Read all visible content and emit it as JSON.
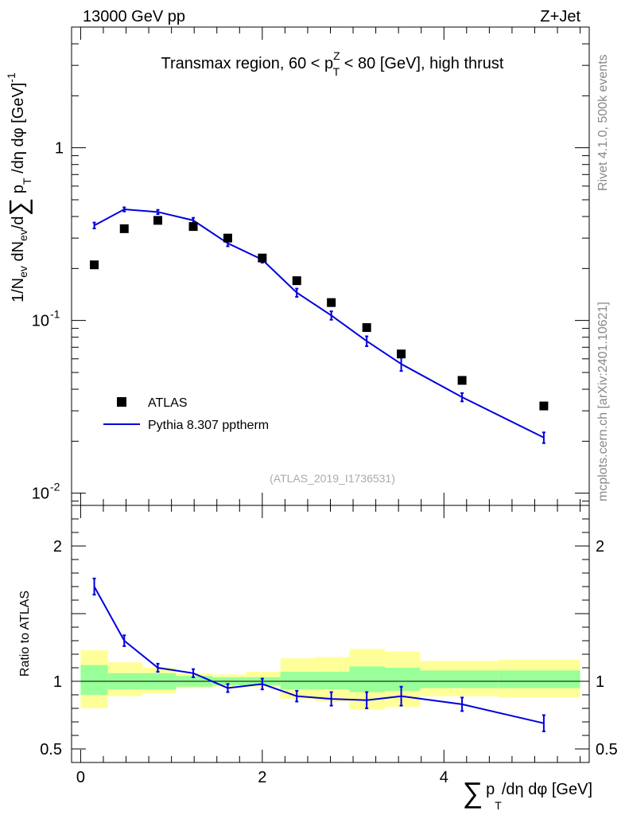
{
  "header": {
    "left": "13000 GeV pp",
    "right": "Z+Jet",
    "side_top": "Rivet 4.1.0,  500k events",
    "side_bottom": "mcplots.cern.ch [arXiv:2401.10621]",
    "watermark": "(ATLAS_2019_I1736531)"
  },
  "colors": {
    "data": "#000000",
    "mc": "#0000dd",
    "band_inner": "#99ff99",
    "band_outer": "#ffff99"
  },
  "chart_data": [
    {
      "type": "scatter",
      "title": "Transmax region, 60 < p_T^Z < 80 [GeV], high thrust",
      "title_parts": {
        "pre": "Transmax region, 60 < p",
        "sup": "Z",
        "sub": "T",
        "post": " < 80 [GeV], high thrust"
      },
      "ylabel": "1/N_ev dN_ev/d∑ p_T /dη dφ [GeV]^-1",
      "ylabel_parts": {
        "a": "1/N",
        "b": "ev",
        "c": " dN",
        "d": "ev",
        "e": "/d",
        "sum": "∑",
        "f": " p",
        "g": "T",
        "h": " /dη dφ  [GeV]",
        "i": "-1"
      },
      "yscale": "log",
      "ylim": [
        0.0085,
        5.0
      ],
      "xlim": [
        -0.1,
        5.6
      ],
      "yticks": [
        {
          "value": 1,
          "label": "1"
        },
        {
          "value": 0.1,
          "base": "10",
          "exp": "-1"
        },
        {
          "value": 0.01,
          "base": "10",
          "exp": "-2"
        }
      ],
      "legend": {
        "position": "bottom-left",
        "entries": [
          {
            "label": "ATLAS",
            "style": "marker"
          },
          {
            "label": "Pythia 8.307 pptherm",
            "style": "line"
          }
        ]
      },
      "series": [
        {
          "name": "ATLAS",
          "x": [
            0.15,
            0.48,
            0.85,
            1.24,
            1.62,
            2.0,
            2.38,
            2.76,
            3.15,
            3.53,
            4.2,
            5.1
          ],
          "y": [
            0.21,
            0.34,
            0.38,
            0.35,
            0.3,
            0.23,
            0.17,
            0.127,
            0.091,
            0.064,
            0.045,
            0.032
          ]
        },
        {
          "name": "Pythia 8.307 pptherm",
          "x": [
            0.15,
            0.48,
            0.85,
            1.24,
            1.62,
            2.0,
            2.38,
            2.76,
            3.15,
            3.53,
            4.2,
            5.1
          ],
          "y": [
            0.355,
            0.44,
            0.425,
            0.38,
            0.28,
            0.225,
            0.145,
            0.107,
            0.076,
            0.056,
            0.036,
            0.021
          ],
          "yerr": [
            0.014,
            0.012,
            0.012,
            0.013,
            0.011,
            0.009,
            0.008,
            0.006,
            0.005,
            0.005,
            0.002,
            0.0015
          ]
        }
      ]
    },
    {
      "type": "line",
      "ylabel": "Ratio to ATLAS",
      "xlabel": "∑ p_T /dη dφ [GeV]",
      "xlabel_parts": {
        "sum": "∑",
        "p": "p",
        "sub": "T",
        "rest": "/dη dφ [GeV]"
      },
      "ylim": [
        0.4,
        2.3
      ],
      "xlim": [
        -0.1,
        5.6
      ],
      "reference_line": 1,
      "yticks": [
        {
          "value": 2,
          "label": "2"
        },
        {
          "value": 1,
          "label": "1"
        },
        {
          "value": 0.5,
          "label": "0.5"
        }
      ],
      "xticks": [
        {
          "value": 0,
          "label": "0"
        },
        {
          "value": 2,
          "label": "2"
        },
        {
          "value": 4,
          "label": "4"
        }
      ],
      "bands": {
        "edges": [
          0.0,
          0.3,
          0.68,
          1.05,
          1.45,
          1.82,
          2.2,
          2.58,
          2.96,
          3.35,
          3.74,
          4.6,
          5.5
        ],
        "inner_lo": [
          0.9,
          0.94,
          0.94,
          0.96,
          0.97,
          0.97,
          0.94,
          0.94,
          0.92,
          0.93,
          0.95,
          0.95
        ],
        "inner_hi": [
          1.12,
          1.06,
          1.06,
          1.04,
          1.03,
          1.03,
          1.07,
          1.07,
          1.11,
          1.1,
          1.08,
          1.08
        ],
        "outer_lo": [
          0.8,
          0.89,
          0.91,
          0.95,
          0.96,
          0.96,
          0.87,
          0.85,
          0.79,
          0.81,
          0.89,
          0.88
        ],
        "outer_hi": [
          1.23,
          1.14,
          1.1,
          1.06,
          1.05,
          1.07,
          1.17,
          1.18,
          1.24,
          1.22,
          1.15,
          1.16
        ]
      },
      "series": [
        {
          "name": "Pythia 8.307 pptherm",
          "x": [
            0.15,
            0.48,
            0.85,
            1.24,
            1.62,
            2.0,
            2.38,
            2.76,
            3.15,
            3.53,
            4.2,
            5.1
          ],
          "y": [
            1.7,
            1.3,
            1.1,
            1.06,
            0.95,
            0.98,
            0.89,
            0.87,
            0.86,
            0.89,
            0.83,
            0.69
          ],
          "yerr": [
            0.06,
            0.04,
            0.03,
            0.03,
            0.03,
            0.04,
            0.04,
            0.05,
            0.06,
            0.07,
            0.05,
            0.06
          ]
        }
      ]
    }
  ]
}
